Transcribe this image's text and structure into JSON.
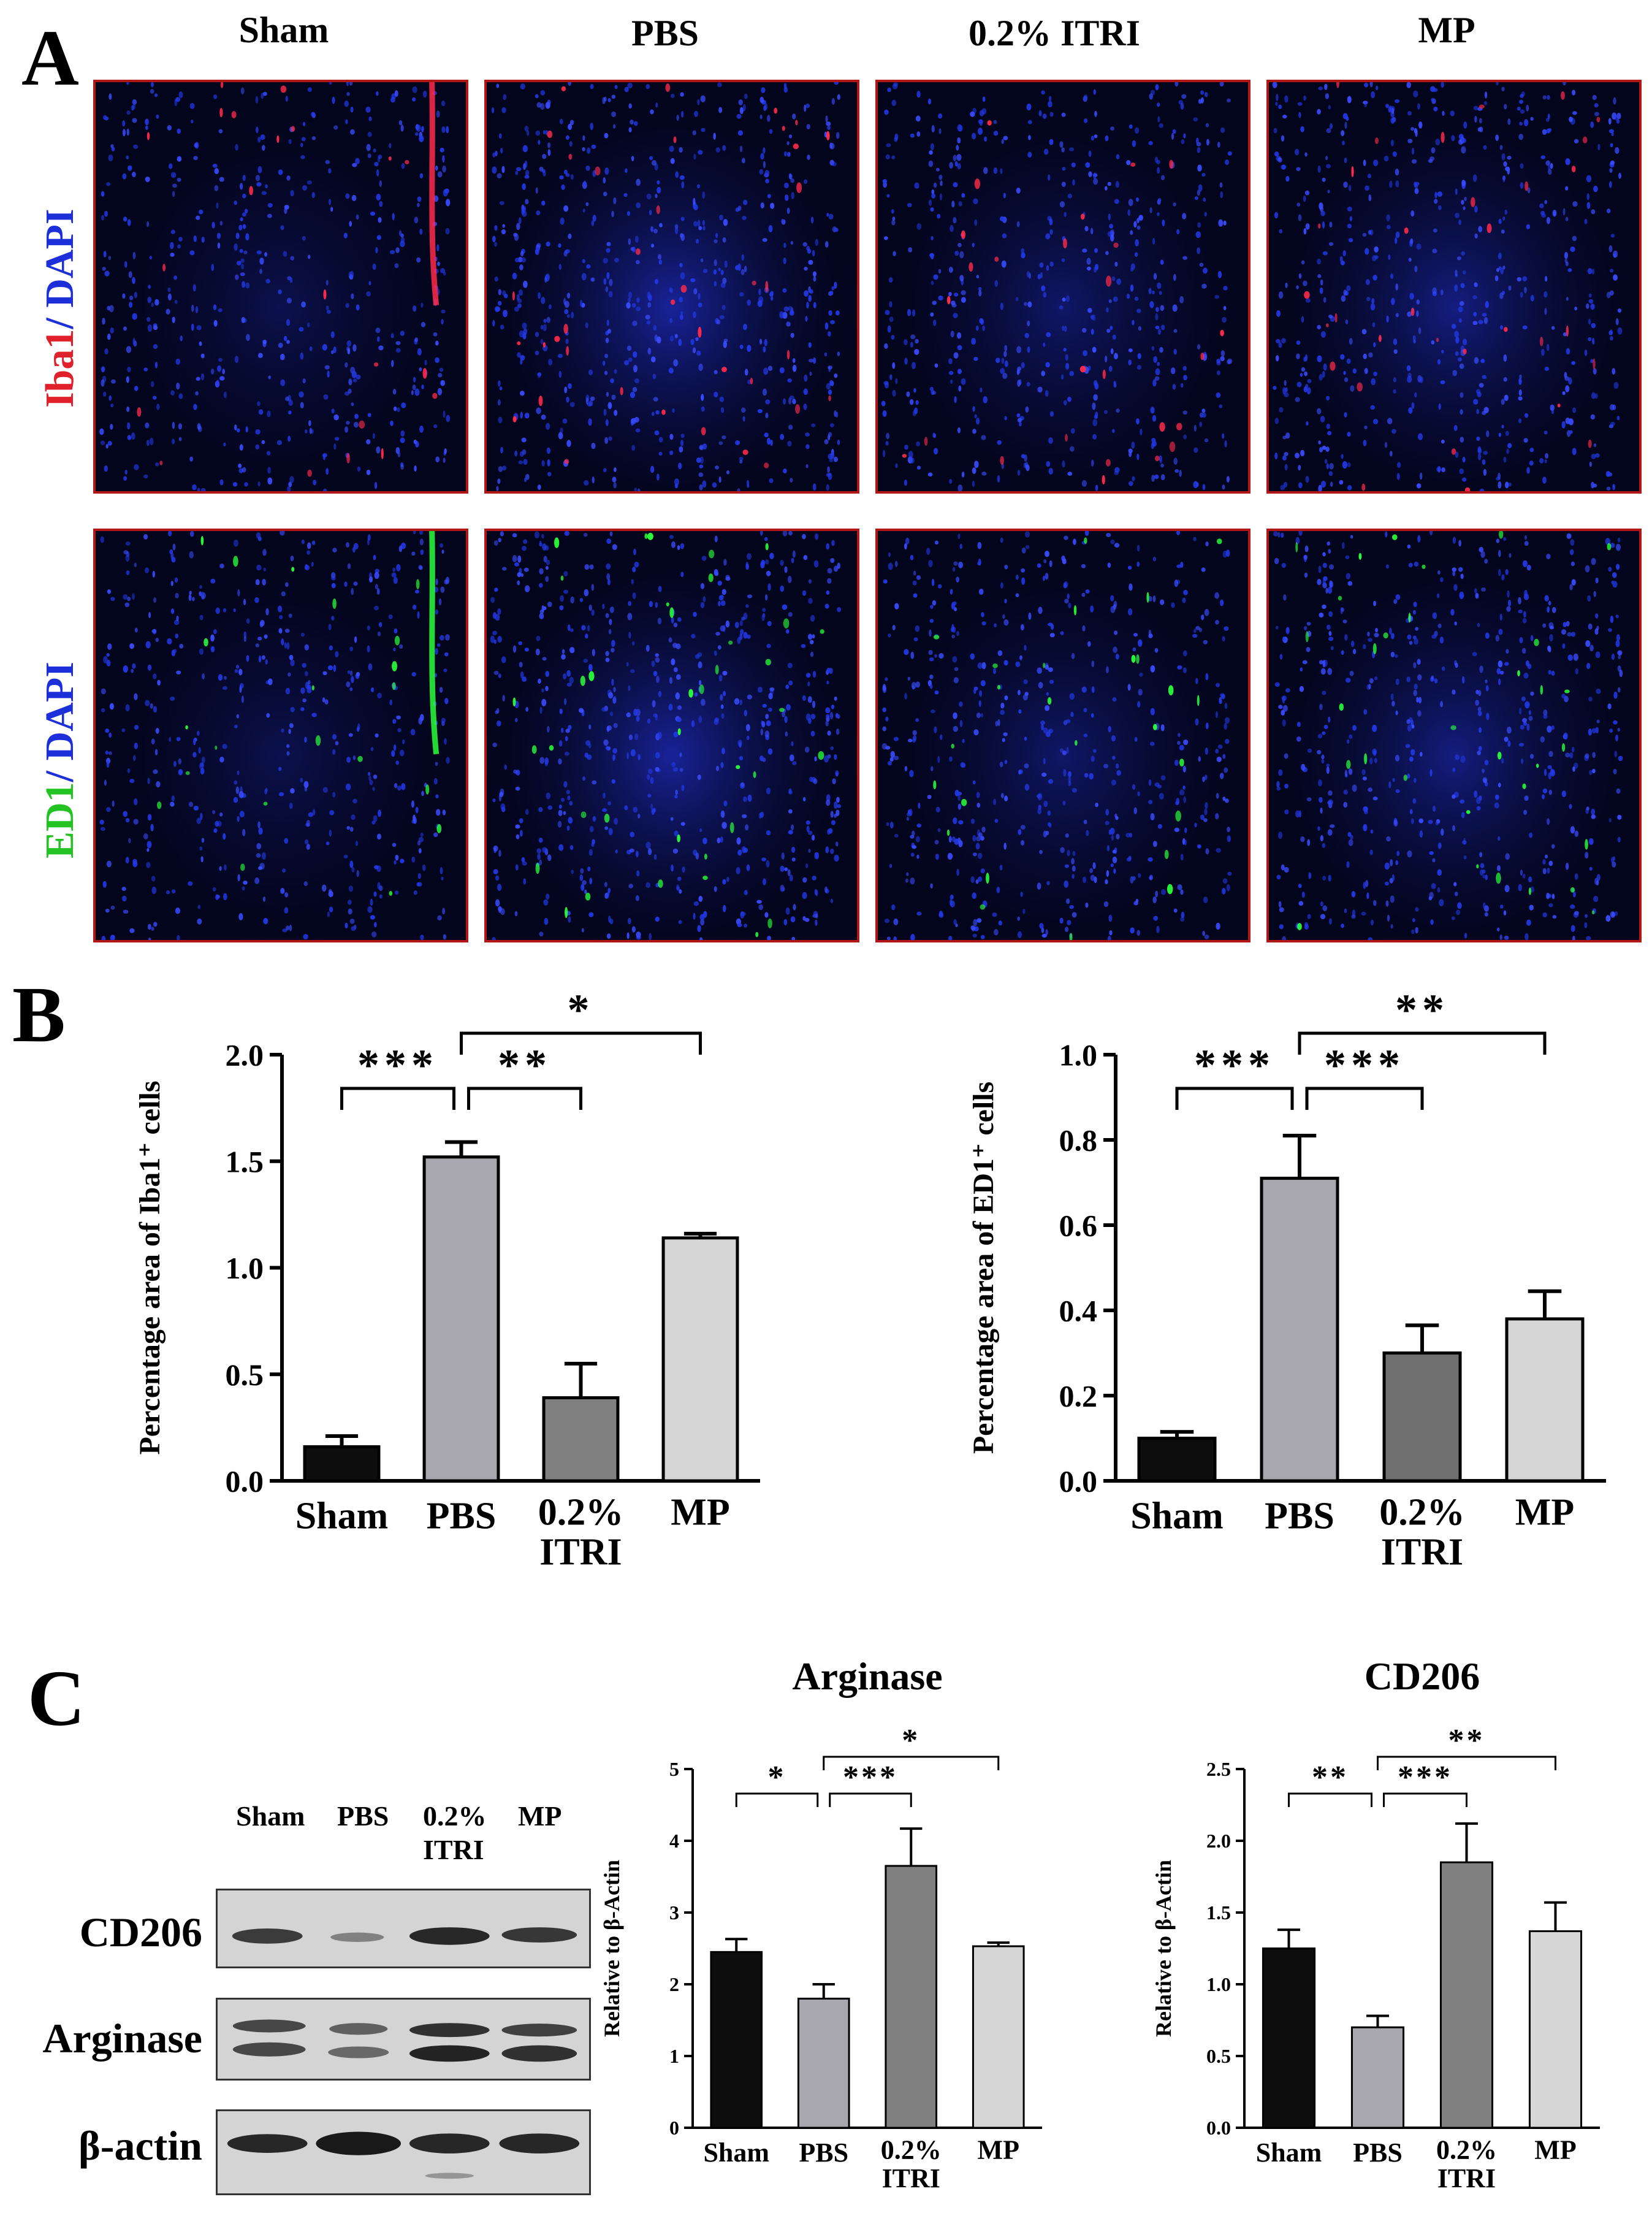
{
  "panels": {
    "a": "A",
    "b": "B",
    "c": "C"
  },
  "panel_a": {
    "columns": [
      "Sham",
      "PBS",
      "0.2% ITRI",
      "MP"
    ],
    "row1_label": {
      "marker": "Iba1",
      "sep": "/ ",
      "counter": "DAPI",
      "marker_color": "#e0202a",
      "counter_color": "#1d2fd8"
    },
    "row2_label": {
      "marker": "ED1",
      "sep": "/ ",
      "counter": "DAPI",
      "marker_color": "#22c322",
      "counter_color": "#1d2fd8"
    },
    "colors": {
      "dapi": "#1a2bd9",
      "iba1": "#ff2a4a",
      "ed1": "#2aff3a",
      "frame": "#b01818"
    }
  },
  "panel_c": {
    "lanes": [
      "Sham",
      "PBS",
      "0.2%",
      "MP"
    ],
    "lane_sub": "ITRI",
    "rows": [
      "CD206",
      "Arginase",
      "β-actin"
    ]
  },
  "chart_data": [
    {
      "id": "iba1",
      "type": "bar",
      "title": "",
      "categories": [
        "Sham",
        "PBS",
        "0.2%|ITRI",
        "MP"
      ],
      "values": [
        0.16,
        1.52,
        0.39,
        1.14
      ],
      "errors": [
        0.05,
        0.07,
        0.16,
        0.02
      ],
      "colors": [
        "#0d0d0d",
        "#a7a7ad",
        "#808080",
        "#d6d6d6"
      ],
      "ylabel": "Percentage area of Iba1⁺ cells",
      "ylim": [
        0,
        2.0
      ],
      "yticks": [
        "0.0",
        "0.5",
        "1.0",
        "1.5",
        "2.0"
      ],
      "significance": [
        {
          "from": 0,
          "to": 1,
          "label": "***"
        },
        {
          "from": 1,
          "to": 2,
          "label": "**"
        },
        {
          "from": 1,
          "to": 3,
          "label": "*"
        }
      ]
    },
    {
      "id": "ed1",
      "type": "bar",
      "title": "",
      "categories": [
        "Sham",
        "PBS",
        "0.2%|ITRI",
        "MP"
      ],
      "values": [
        0.1,
        0.71,
        0.3,
        0.38
      ],
      "errors": [
        0.015,
        0.1,
        0.065,
        0.065
      ],
      "colors": [
        "#0d0d0d",
        "#a7a7ad",
        "#6f6f6f",
        "#d6d6d6"
      ],
      "ylabel": "Percentage area of ED1⁺ cells",
      "ylim": [
        0,
        1.0
      ],
      "yticks": [
        "0.0",
        "0.2",
        "0.4",
        "0.6",
        "0.8",
        "1.0"
      ],
      "significance": [
        {
          "from": 0,
          "to": 1,
          "label": "***"
        },
        {
          "from": 1,
          "to": 2,
          "label": "***"
        },
        {
          "from": 1,
          "to": 3,
          "label": "**"
        }
      ]
    },
    {
      "id": "arginase",
      "type": "bar",
      "title": "Arginase",
      "categories": [
        "Sham",
        "PBS",
        "0.2%|ITRI",
        "MP"
      ],
      "values": [
        2.45,
        1.8,
        3.65,
        2.53
      ],
      "errors": [
        0.18,
        0.2,
        0.52,
        0.05
      ],
      "colors": [
        "#0d0d0d",
        "#a7a7ad",
        "#808080",
        "#d6d6d6"
      ],
      "ylabel": "Relative to β-Actin",
      "ylim": [
        0,
        5
      ],
      "yticks": [
        "0",
        "1",
        "2",
        "3",
        "4",
        "5"
      ],
      "significance": [
        {
          "from": 0,
          "to": 1,
          "label": "*"
        },
        {
          "from": 1,
          "to": 2,
          "label": "***"
        },
        {
          "from": 1,
          "to": 3,
          "label": "*"
        }
      ]
    },
    {
      "id": "cd206",
      "type": "bar",
      "title": "CD206",
      "categories": [
        "Sham",
        "PBS",
        "0.2%|ITRI",
        "MP"
      ],
      "values": [
        1.25,
        0.7,
        1.85,
        1.37
      ],
      "errors": [
        0.13,
        0.08,
        0.27,
        0.2
      ],
      "colors": [
        "#0d0d0d",
        "#a7a7ad",
        "#808080",
        "#d6d6d6"
      ],
      "ylabel": "Relative to β-Actin",
      "ylim": [
        0,
        2.5
      ],
      "yticks": [
        "0.0",
        "0.5",
        "1.0",
        "1.5",
        "2.0",
        "2.5"
      ],
      "significance": [
        {
          "from": 0,
          "to": 1,
          "label": "**"
        },
        {
          "from": 1,
          "to": 2,
          "label": "***"
        },
        {
          "from": 1,
          "to": 3,
          "label": "**"
        }
      ]
    }
  ]
}
